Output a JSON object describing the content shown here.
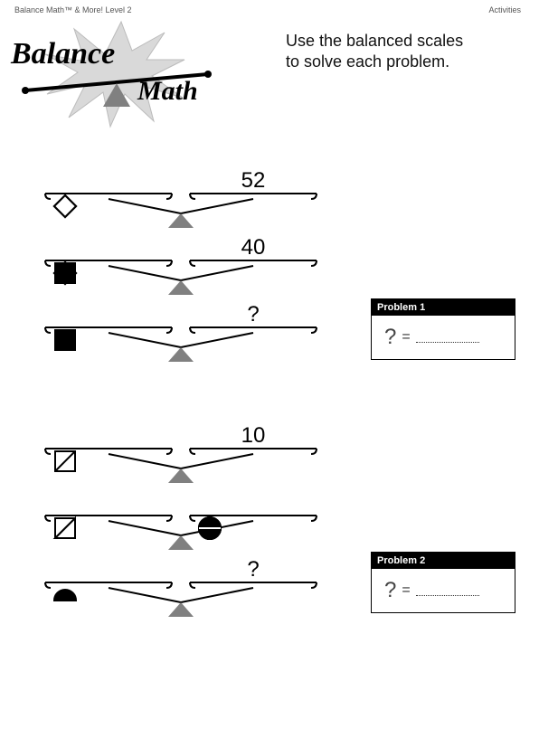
{
  "header": {
    "left": "Balance Math™ & More!  Level 2",
    "right": "Activities"
  },
  "logo": {
    "word1": "Balance",
    "word2": "Math"
  },
  "instructions": {
    "line1": "Use the balanced scales",
    "line2": "to solve each problem."
  },
  "colors": {
    "beam": "#000000",
    "fulcrum": "#808080",
    "shape_fill_black": "#000000",
    "shape_fill_white": "#ffffff",
    "shape_stroke": "#000000"
  },
  "problems": [
    {
      "label": "Problem 1",
      "eq_symbol": "=",
      "qmark": "?",
      "scales": [
        {
          "left": {
            "shapes": [
              "diamond",
              "diamond",
              "diamond",
              "diamond"
            ],
            "fills": [
              "white",
              "white",
              "white",
              "white"
            ]
          },
          "right": {
            "value": "52"
          }
        },
        {
          "left": {
            "shapes": [
              "diamond",
              "diamond",
              "diamond",
              "square",
              "square"
            ],
            "fills": [
              "white",
              "white",
              "white",
              "black",
              "black"
            ]
          },
          "right": {
            "value": "40"
          }
        },
        {
          "left": {
            "shapes": [
              "square"
            ],
            "fills": [
              "black"
            ]
          },
          "right": {
            "value": "?"
          }
        }
      ]
    },
    {
      "label": "Problem 2",
      "eq_symbol": "=",
      "qmark": "?",
      "scales": [
        {
          "left": {
            "shapes": [
              "square-slash",
              "square-slash"
            ],
            "fills": [
              "white",
              "white"
            ]
          },
          "right": {
            "value": "10"
          }
        },
        {
          "left": {
            "shapes": [
              "square-slash",
              "triangle-slash"
            ],
            "fills": [
              "white",
              "white"
            ]
          },
          "right": {
            "shapes": [
              "circle-split",
              "circle-split",
              "circle-split"
            ],
            "fills": [
              "black",
              "black",
              "black"
            ]
          }
        },
        {
          "left": {
            "shapes": [
              "semicircle"
            ],
            "fills": [
              "black"
            ]
          },
          "right": {
            "value": "?"
          }
        }
      ]
    }
  ]
}
